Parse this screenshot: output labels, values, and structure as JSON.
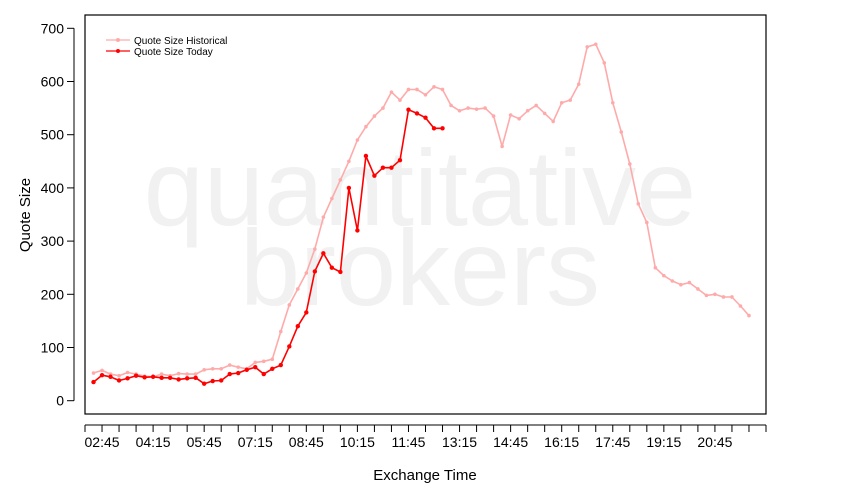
{
  "watermark": {
    "line1": "quantitative",
    "line2": "brokers"
  },
  "chart_data": {
    "type": "line",
    "xlabel": "Exchange Time",
    "ylabel": "Quote Size",
    "x_tick_labels": [
      "02:45",
      "04:15",
      "05:45",
      "07:15",
      "08:45",
      "10:15",
      "11:45",
      "13:15",
      "14:45",
      "16:15",
      "17:45",
      "19:15",
      "20:45"
    ],
    "y_ticks": [
      0,
      100,
      200,
      300,
      400,
      500,
      600,
      700
    ],
    "xlim": [
      "02:15",
      "22:15"
    ],
    "ylim": [
      -25,
      725
    ],
    "grid": false,
    "legend_position": "top-left",
    "series": [
      {
        "name": "Quote Size Historical",
        "color": "#ffaaaa",
        "x": [
          "02:30",
          "02:45",
          "03:00",
          "03:15",
          "03:30",
          "03:45",
          "04:00",
          "04:15",
          "04:30",
          "04:45",
          "05:00",
          "05:15",
          "05:30",
          "05:45",
          "06:00",
          "06:15",
          "06:30",
          "06:45",
          "07:00",
          "07:15",
          "07:30",
          "07:45",
          "08:00",
          "08:15",
          "08:30",
          "08:45",
          "09:00",
          "09:15",
          "09:30",
          "09:45",
          "10:00",
          "10:15",
          "10:30",
          "10:45",
          "11:00",
          "11:15",
          "11:30",
          "11:45",
          "12:00",
          "12:15",
          "12:30",
          "12:45",
          "13:00",
          "13:15",
          "13:30",
          "13:45",
          "14:00",
          "14:15",
          "14:30",
          "14:45",
          "15:00",
          "15:15",
          "15:30",
          "15:45",
          "16:00",
          "16:15",
          "16:30",
          "16:45",
          "17:00",
          "17:15",
          "17:30",
          "17:45",
          "18:00",
          "18:15",
          "18:30",
          "18:45",
          "19:00",
          "19:15",
          "19:30",
          "19:45",
          "20:00",
          "20:15",
          "20:30",
          "20:45",
          "21:00",
          "21:15",
          "21:30",
          "21:45"
        ],
        "values": [
          52,
          57,
          50,
          47,
          53,
          50,
          46,
          45,
          50,
          47,
          51,
          50,
          50,
          58,
          60,
          60,
          67,
          63,
          60,
          72,
          74,
          78,
          130,
          180,
          210,
          240,
          285,
          345,
          380,
          415,
          450,
          490,
          515,
          535,
          550,
          580,
          565,
          585,
          585,
          575,
          590,
          585,
          555,
          545,
          550,
          548,
          550,
          535,
          478,
          537,
          530,
          545,
          555,
          540,
          525,
          560,
          565,
          595,
          665,
          670,
          635,
          560,
          505,
          445,
          370,
          335,
          250,
          235,
          225,
          218,
          222,
          210,
          198,
          200,
          195,
          195,
          178,
          160
        ]
      },
      {
        "name": "Quote Size Today",
        "color": "#ff0000",
        "x": [
          "02:30",
          "02:45",
          "03:00",
          "03:15",
          "03:30",
          "03:45",
          "04:00",
          "04:15",
          "04:30",
          "04:45",
          "05:00",
          "05:15",
          "05:30",
          "05:45",
          "06:00",
          "06:15",
          "06:30",
          "06:45",
          "07:00",
          "07:15",
          "07:30",
          "07:45",
          "08:00",
          "08:15",
          "08:30",
          "08:45",
          "09:00",
          "09:15",
          "09:30",
          "09:45",
          "10:00",
          "10:15",
          "10:30",
          "10:45",
          "11:00",
          "11:15",
          "11:30",
          "11:45",
          "12:00",
          "12:15",
          "12:30",
          "12:45"
        ],
        "values": [
          35,
          48,
          45,
          38,
          42,
          47,
          44,
          45,
          43,
          43,
          40,
          42,
          43,
          32,
          37,
          38,
          50,
          52,
          58,
          63,
          50,
          60,
          67,
          102,
          140,
          166,
          243,
          277,
          250,
          242,
          400,
          320,
          460,
          423,
          438,
          438,
          452,
          547,
          540,
          532,
          512,
          512
        ]
      }
    ]
  }
}
